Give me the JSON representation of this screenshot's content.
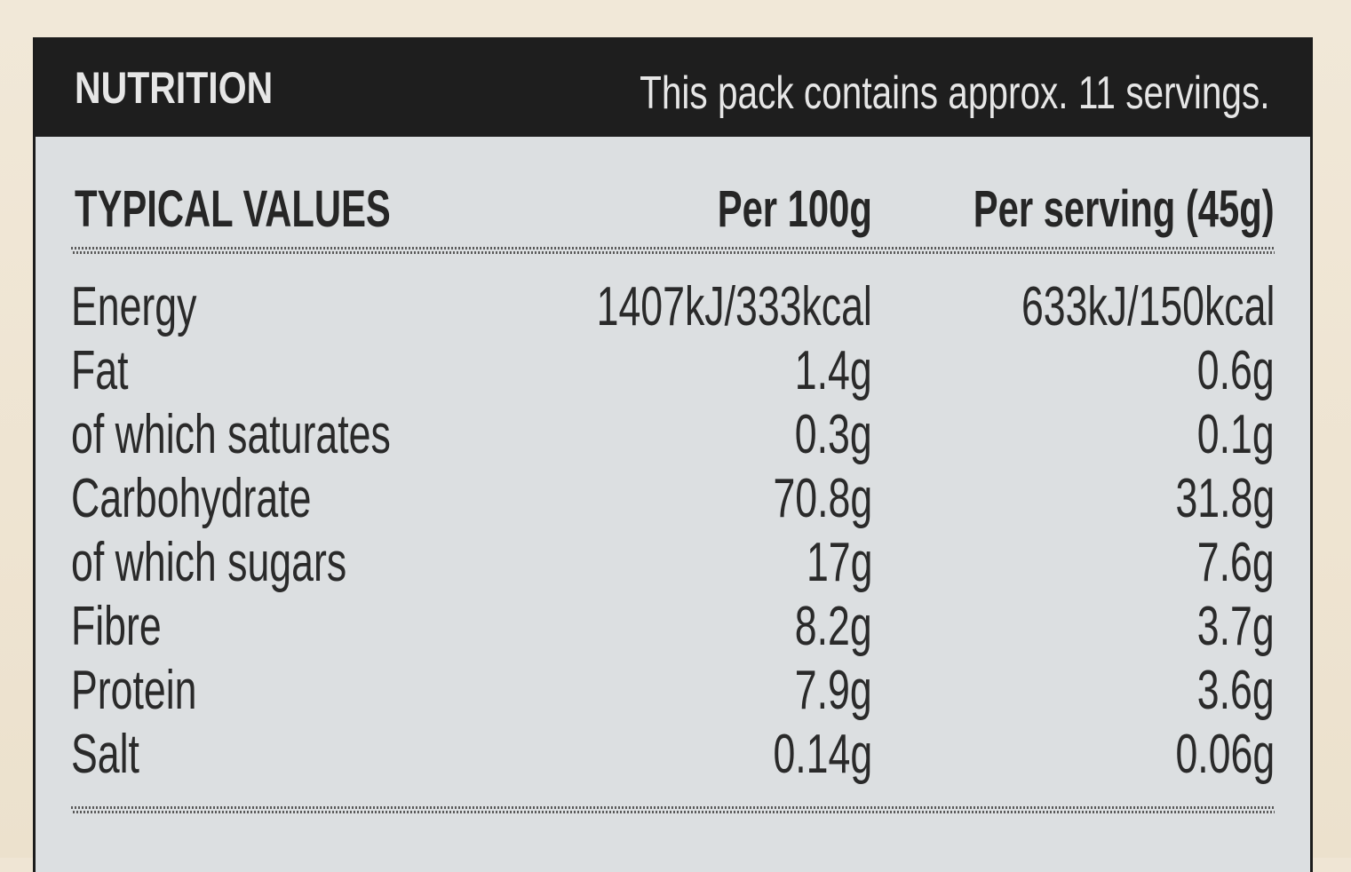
{
  "header": {
    "title": "NUTRITION",
    "note": "This pack contains approx. 11 servings."
  },
  "columns": {
    "label": "TYPICAL VALUES",
    "per100": "Per 100g",
    "perServing": "Per serving (45g)"
  },
  "rows": [
    {
      "name": "Energy",
      "per100": "1407kJ/333kcal",
      "perServing": "633kJ/150kcal"
    },
    {
      "name": "Fat",
      "per100": "1.4g",
      "perServing": "0.6g"
    },
    {
      "name": "of which saturates",
      "per100": "0.3g",
      "perServing": "0.1g"
    },
    {
      "name": "Carbohydrate",
      "per100": "70.8g",
      "perServing": "31.8g"
    },
    {
      "name": "of which sugars",
      "per100": "17g",
      "perServing": "7.6g"
    },
    {
      "name": "Fibre",
      "per100": "8.2g",
      "perServing": "3.7g"
    },
    {
      "name": "Protein",
      "per100": "7.9g",
      "perServing": "3.6g"
    },
    {
      "name": "Salt",
      "per100": "0.14g",
      "perServing": "0.06g"
    }
  ],
  "colors": {
    "header_bg": "#1e1e1e",
    "panel_bg": "#dcdfe1",
    "text": "#2a2a2a",
    "packaging_bg": "#efe5d4"
  }
}
